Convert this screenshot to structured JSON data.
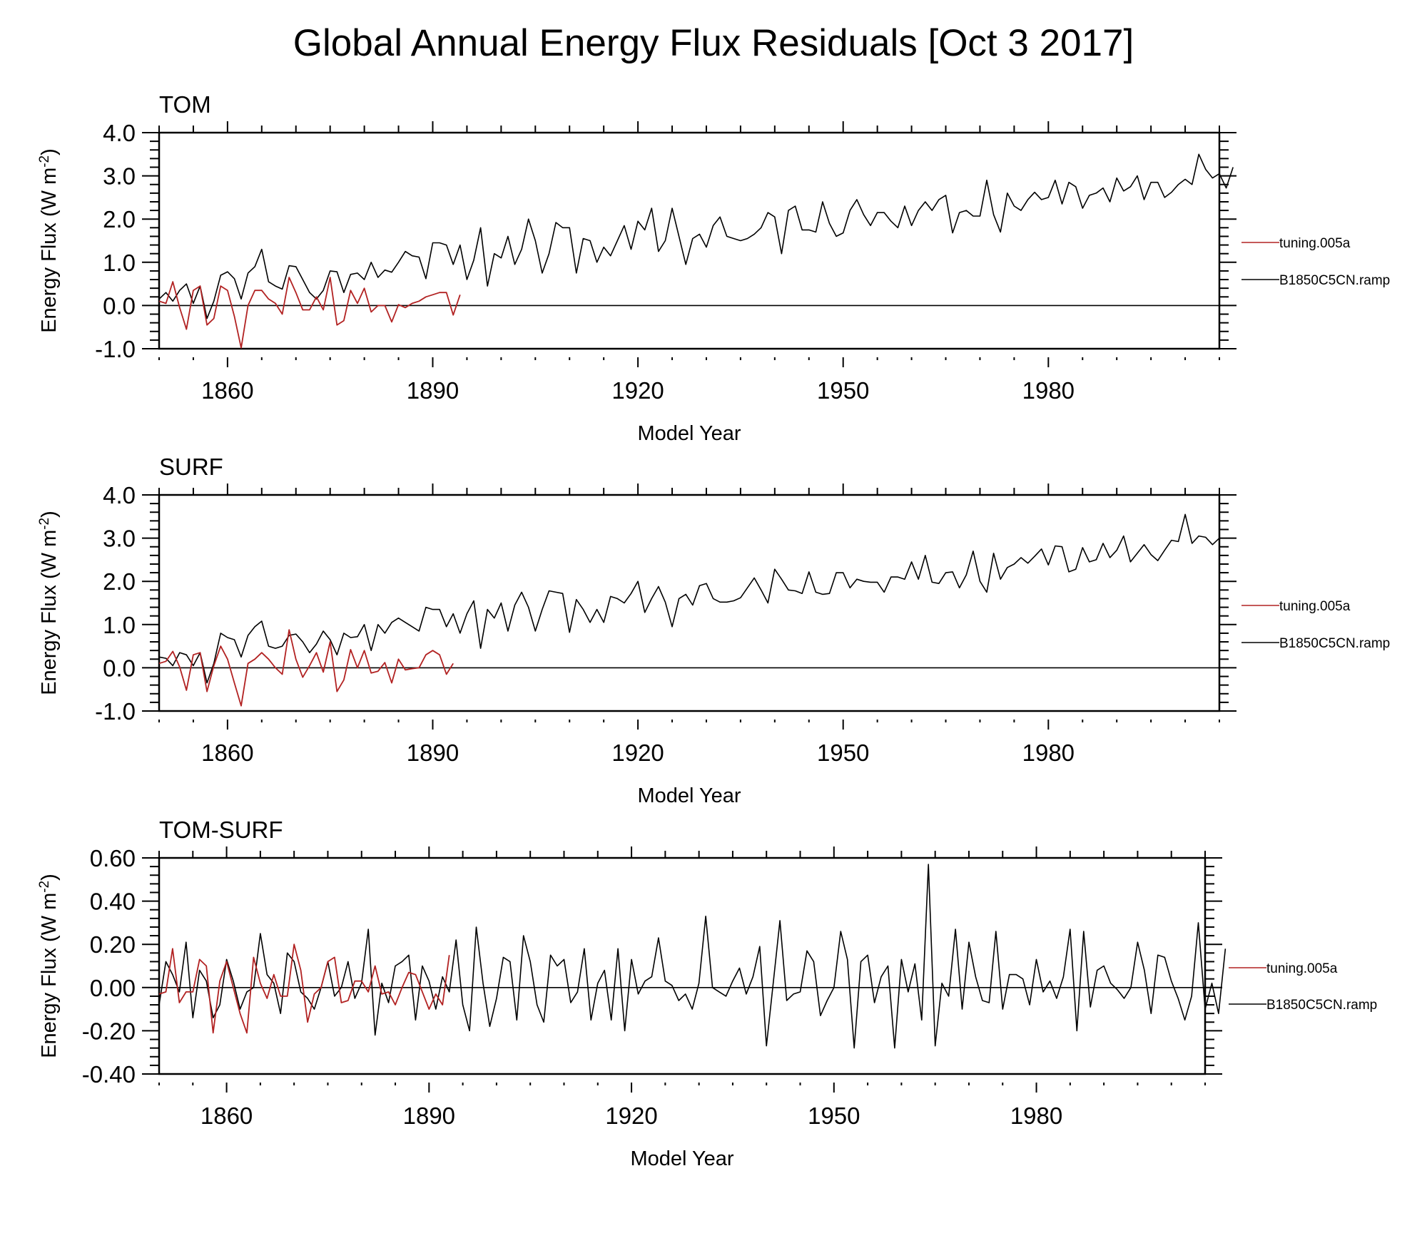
{
  "chart_data": {
    "title": "Global Annual Energy Flux Residuals [Oct  3 2017]",
    "colors": {
      "tuning.005a": "#b22222",
      "B1850C5CN.ramp": "#000000"
    },
    "panels": [
      {
        "type": "line",
        "label": "TOM",
        "xlabel": "Model Year",
        "ylabel_main": "Energy Flux (W m",
        "ylabel_sup": "-2",
        "ylabel_end": ")",
        "xlim": [
          1850,
          2005
        ],
        "ylim": [
          -1.0,
          4.0
        ],
        "xticks": [
          1860,
          1890,
          1920,
          1950,
          1980
        ],
        "yticks": [
          -1.0,
          0.0,
          1.0,
          2.0,
          3.0,
          4.0
        ],
        "ytick_labels": [
          "-1.0",
          "0.0",
          "1.0",
          "2.0",
          "3.0",
          "4.0"
        ],
        "zero_line": true,
        "legend": [
          "tuning.005a",
          "B1850C5CN.ramp"
        ],
        "series": [
          {
            "name": "B1850C5CN.ramp",
            "x_start": 1850,
            "values": [
              0.15,
              0.3,
              0.1,
              0.35,
              0.5,
              0.05,
              0.45,
              -0.3,
              0.1,
              0.7,
              0.78,
              0.62,
              0.15,
              0.75,
              0.9,
              1.3,
              0.55,
              0.45,
              0.38,
              0.92,
              0.9,
              0.6,
              0.3,
              0.15,
              0.35,
              0.8,
              0.78,
              0.3,
              0.72,
              0.75,
              0.6,
              1.0,
              0.65,
              0.82,
              0.77,
              1.0,
              1.25,
              1.15,
              1.12,
              0.62,
              1.45,
              1.45,
              1.4,
              0.95,
              1.4,
              0.6,
              1.05,
              1.8,
              0.45,
              1.2,
              1.1,
              1.6,
              0.95,
              1.3,
              2.0,
              1.5,
              0.75,
              1.2,
              1.92,
              1.8,
              1.8,
              0.75,
              1.55,
              1.5,
              1.0,
              1.35,
              1.15,
              1.5,
              1.85,
              1.3,
              1.95,
              1.75,
              2.25,
              1.25,
              1.5,
              2.25,
              1.6,
              0.95,
              1.55,
              1.65,
              1.35,
              1.85,
              2.05,
              1.6,
              1.55,
              1.5,
              1.55,
              1.65,
              1.8,
              2.15,
              2.05,
              1.2,
              2.2,
              2.3,
              1.75,
              1.75,
              1.7,
              2.4,
              1.9,
              1.6,
              1.68,
              2.2,
              2.45,
              2.1,
              1.85,
              2.15,
              2.15,
              1.95,
              1.8,
              2.3,
              1.85,
              2.2,
              2.4,
              2.2,
              2.45,
              2.55,
              1.68,
              2.15,
              2.2,
              2.07,
              2.07,
              2.9,
              2.1,
              1.7,
              2.6,
              2.3,
              2.2,
              2.45,
              2.62,
              2.45,
              2.5,
              2.9,
              2.35,
              2.85,
              2.75,
              2.25,
              2.55,
              2.6,
              2.72,
              2.4,
              2.95,
              2.65,
              2.75,
              3.0,
              2.45,
              2.85,
              2.85,
              2.5,
              2.62,
              2.8,
              2.92,
              2.8,
              3.5,
              3.15,
              2.95,
              3.05,
              2.72,
              3.2
            ]
          },
          {
            "name": "tuning.005a",
            "x_start": 1850,
            "values": [
              0.1,
              0.05,
              0.55,
              -0.05,
              -0.55,
              0.35,
              0.45,
              -0.45,
              -0.3,
              0.45,
              0.35,
              -0.25,
              -0.98,
              0.0,
              0.35,
              0.35,
              0.15,
              0.05,
              -0.2,
              0.65,
              0.3,
              -0.1,
              -0.1,
              0.2,
              -0.1,
              0.65,
              -0.45,
              -0.35,
              0.35,
              0.05,
              0.4,
              -0.15,
              0.0,
              0.0,
              -0.38,
              0.02,
              -0.05,
              0.05,
              0.1,
              0.2,
              0.25,
              0.3,
              0.3,
              -0.22,
              0.25
            ]
          }
        ]
      },
      {
        "type": "line",
        "label": "SURF",
        "xlabel": "Model Year",
        "ylabel_main": "Energy Flux (W m",
        "ylabel_sup": "-2",
        "ylabel_end": ")",
        "xlim": [
          1850,
          2005
        ],
        "ylim": [
          -1.0,
          4.0
        ],
        "xticks": [
          1860,
          1890,
          1920,
          1950,
          1980
        ],
        "yticks": [
          -1.0,
          0.0,
          1.0,
          2.0,
          3.0,
          4.0
        ],
        "ytick_labels": [
          "-1.0",
          "0.0",
          "1.0",
          "2.0",
          "3.0",
          "4.0"
        ],
        "zero_line": true,
        "legend": [
          "tuning.005a",
          "B1850C5CN.ramp"
        ],
        "series": [
          {
            "name": "B1850C5CN.ramp",
            "x_start": 1850,
            "values": [
              0.25,
              0.22,
              0.05,
              0.35,
              0.3,
              0.05,
              0.35,
              -0.35,
              0.1,
              0.8,
              0.7,
              0.65,
              0.25,
              0.75,
              0.95,
              1.08,
              0.5,
              0.45,
              0.5,
              0.75,
              0.78,
              0.6,
              0.35,
              0.55,
              0.85,
              0.65,
              0.3,
              0.8,
              0.7,
              0.72,
              1.0,
              0.4,
              1.0,
              0.8,
              1.05,
              1.15,
              1.05,
              0.95,
              0.85,
              1.4,
              1.35,
              1.35,
              0.95,
              1.25,
              0.8,
              1.25,
              1.55,
              0.45,
              1.35,
              1.15,
              1.5,
              0.85,
              1.45,
              1.75,
              1.4,
              0.85,
              1.35,
              1.78,
              1.75,
              1.72,
              0.82,
              1.58,
              1.35,
              1.05,
              1.35,
              1.05,
              1.65,
              1.6,
              1.5,
              1.72,
              2.0,
              1.28,
              1.6,
              1.88,
              1.52,
              0.95,
              1.6,
              1.7,
              1.45,
              1.9,
              1.95,
              1.6,
              1.52,
              1.52,
              1.55,
              1.62,
              1.85,
              2.08,
              1.8,
              1.5,
              2.28,
              2.05,
              1.8,
              1.78,
              1.72,
              2.22,
              1.75,
              1.7,
              1.72,
              2.2,
              2.2,
              1.85,
              2.05,
              2.0,
              1.98,
              1.98,
              1.75,
              2.1,
              2.1,
              2.05,
              2.45,
              2.05,
              2.6,
              1.98,
              1.95,
              2.2,
              2.22,
              1.85,
              2.15,
              2.7,
              2.0,
              1.75,
              2.65,
              2.05,
              2.32,
              2.4,
              2.55,
              2.42,
              2.58,
              2.75,
              2.38,
              2.82,
              2.8,
              2.22,
              2.28,
              2.78,
              2.45,
              2.5,
              2.88,
              2.55,
              2.72,
              3.05,
              2.45,
              2.65,
              2.85,
              2.62,
              2.48,
              2.72,
              2.95,
              2.92,
              3.55,
              2.88,
              3.05,
              3.02,
              2.85,
              3.0
            ]
          },
          {
            "name": "tuning.005a",
            "x_start": 1850,
            "values": [
              0.1,
              0.15,
              0.38,
              0.02,
              -0.52,
              0.3,
              0.35,
              -0.55,
              0.05,
              0.5,
              0.2,
              -0.35,
              -0.88,
              0.1,
              0.2,
              0.35,
              0.2,
              0.0,
              -0.15,
              0.88,
              0.2,
              -0.22,
              0.05,
              0.35,
              -0.1,
              0.6,
              -0.55,
              -0.28,
              0.42,
              0.0,
              0.4,
              -0.12,
              -0.08,
              0.12,
              -0.35,
              0.2,
              -0.05,
              -0.02,
              0.0,
              0.3,
              0.4,
              0.3,
              -0.15,
              0.1
            ]
          }
        ]
      },
      {
        "type": "line",
        "label": "TOM-SURF",
        "xlabel": "Model Year",
        "ylabel_main": "Energy Flux (W m",
        "ylabel_sup": "-2",
        "ylabel_end": ")",
        "xlim": [
          1850,
          2005
        ],
        "ylim": [
          -0.4,
          0.6
        ],
        "xticks": [
          1860,
          1890,
          1920,
          1950,
          1980
        ],
        "yticks": [
          -0.4,
          -0.2,
          0.0,
          0.2,
          0.4,
          0.6
        ],
        "ytick_labels": [
          "-0.40",
          "-0.20",
          "0.00",
          "0.20",
          "0.40",
          "0.60"
        ],
        "zero_line": true,
        "legend": [
          "tuning.005a",
          "B1850C5CN.ramp"
        ],
        "series": [
          {
            "name": "B1850C5CN.ramp",
            "x_start": 1850,
            "values": [
              -0.08,
              0.12,
              0.06,
              -0.02,
              0.21,
              -0.14,
              0.08,
              0.03,
              -0.14,
              -0.08,
              0.13,
              0.03,
              -0.1,
              -0.02,
              0.0,
              0.25,
              0.06,
              0.02,
              -0.12,
              0.16,
              0.12,
              -0.02,
              -0.05,
              -0.1,
              0.0,
              0.12,
              -0.04,
              0.0,
              0.12,
              -0.05,
              0.02,
              0.27,
              -0.22,
              0.02,
              -0.07,
              0.1,
              0.12,
              0.15,
              -0.15,
              0.1,
              0.03,
              -0.1,
              0.05,
              -0.02,
              0.22,
              -0.08,
              -0.2,
              0.28,
              0.02,
              -0.18,
              -0.05,
              0.14,
              0.12,
              -0.15,
              0.24,
              0.12,
              -0.08,
              -0.16,
              0.15,
              0.1,
              0.13,
              -0.07,
              -0.02,
              0.18,
              -0.15,
              0.02,
              0.08,
              -0.15,
              0.18,
              -0.2,
              0.13,
              -0.03,
              0.03,
              0.05,
              0.23,
              0.03,
              0.01,
              -0.06,
              -0.03,
              -0.1,
              0.02,
              0.33,
              0.0,
              -0.02,
              -0.04,
              0.03,
              0.09,
              -0.03,
              0.05,
              0.19,
              -0.27,
              0.02,
              0.31,
              -0.06,
              -0.03,
              -0.02,
              0.17,
              0.12,
              -0.13,
              -0.06,
              0.0,
              0.26,
              0.13,
              -0.28,
              0.12,
              0.15,
              -0.07,
              0.05,
              0.1,
              -0.28,
              0.13,
              -0.02,
              0.11,
              -0.15,
              0.57,
              -0.27,
              0.02,
              -0.04,
              0.27,
              -0.1,
              0.21,
              0.05,
              -0.06,
              -0.07,
              0.26,
              -0.1,
              0.06,
              0.06,
              0.04,
              -0.08,
              0.13,
              -0.02,
              0.03,
              -0.05,
              0.05,
              0.27,
              -0.2,
              0.26,
              -0.09,
              0.08,
              0.1,
              0.02,
              -0.01,
              -0.05,
              0.0,
              0.21,
              0.08,
              -0.12,
              0.15,
              0.14,
              0.03,
              -0.05,
              -0.15,
              -0.04,
              0.3,
              -0.1,
              0.02,
              -0.12,
              0.18
            ]
          },
          {
            "name": "tuning.005a",
            "x_start": 1850,
            "values": [
              -0.03,
              -0.02,
              0.18,
              -0.07,
              -0.02,
              -0.02,
              0.13,
              0.1,
              -0.21,
              0.03,
              0.12,
              0.0,
              -0.12,
              -0.21,
              0.14,
              0.02,
              -0.05,
              0.06,
              -0.04,
              -0.04,
              0.2,
              0.08,
              -0.16,
              -0.03,
              0.0,
              0.12,
              0.14,
              -0.07,
              -0.06,
              0.03,
              0.03,
              -0.02,
              0.1,
              -0.03,
              -0.02,
              -0.08,
              0.0,
              0.07,
              0.06,
              -0.02,
              -0.1,
              -0.03,
              -0.08,
              0.15
            ]
          }
        ]
      }
    ]
  }
}
